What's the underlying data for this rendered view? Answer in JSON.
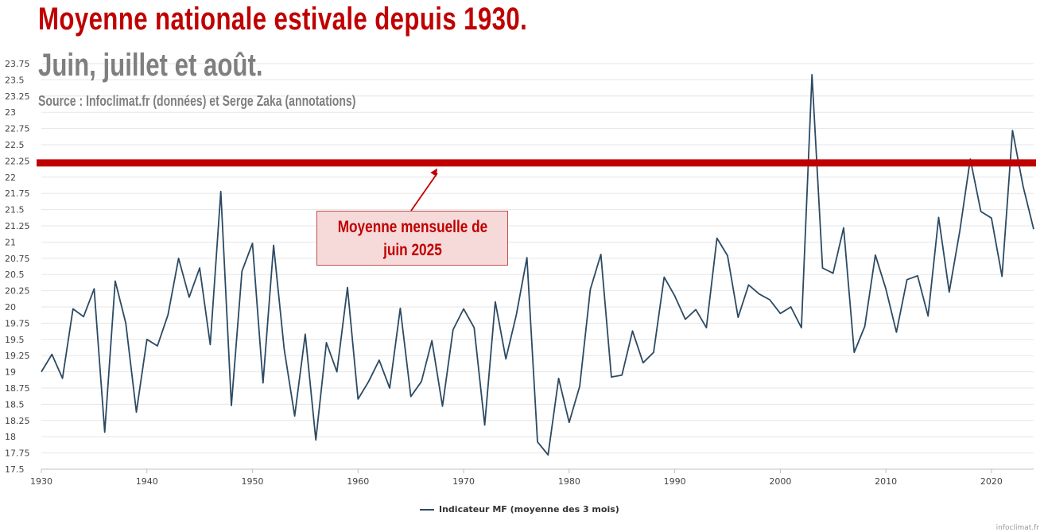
{
  "chart_data": {
    "type": "line",
    "title": "Moyenne nationale estivale depuis 1930.",
    "subtitle": "Juin, juillet et août.",
    "source": "Source : Infoclimat.fr (données) et Serge Zaka (annotations)",
    "xlabel": "",
    "ylabel": "",
    "xlim": [
      1930,
      2024
    ],
    "ylim": [
      17.5,
      23.75
    ],
    "x_ticks": [
      1930,
      1940,
      1950,
      1960,
      1970,
      1980,
      1990,
      2000,
      2010,
      2020
    ],
    "y_ticks": [
      17.5,
      17.75,
      18,
      18.25,
      18.5,
      18.75,
      19,
      19.25,
      19.5,
      19.75,
      20,
      20.25,
      20.5,
      20.75,
      21,
      21.25,
      21.5,
      21.75,
      22,
      22.25,
      22.5,
      22.75,
      23,
      23.25,
      23.5,
      23.75
    ],
    "grid": true,
    "legend_position": "bottom-center",
    "series": [
      {
        "name": "Indicateur MF (moyenne des 3 mois)",
        "color": "#2c4a63",
        "x": [
          1930,
          1931,
          1932,
          1933,
          1934,
          1935,
          1936,
          1937,
          1938,
          1939,
          1940,
          1941,
          1942,
          1943,
          1944,
          1945,
          1946,
          1947,
          1948,
          1949,
          1950,
          1951,
          1952,
          1953,
          1954,
          1955,
          1956,
          1957,
          1958,
          1959,
          1960,
          1961,
          1962,
          1963,
          1964,
          1965,
          1966,
          1967,
          1968,
          1969,
          1970,
          1971,
          1972,
          1973,
          1974,
          1975,
          1976,
          1977,
          1978,
          1979,
          1980,
          1981,
          1982,
          1983,
          1984,
          1985,
          1986,
          1987,
          1988,
          1989,
          1990,
          1991,
          1992,
          1993,
          1994,
          1995,
          1996,
          1997,
          1998,
          1999,
          2000,
          2001,
          2002,
          2003,
          2004,
          2005,
          2006,
          2007,
          2008,
          2009,
          2010,
          2011,
          2012,
          2013,
          2014,
          2015,
          2016,
          2017,
          2018,
          2019,
          2020,
          2021,
          2022,
          2023,
          2024
        ],
        "values": [
          19.0,
          19.27,
          18.9,
          19.97,
          19.85,
          20.28,
          18.07,
          20.4,
          19.75,
          18.38,
          19.5,
          19.4,
          19.88,
          20.75,
          20.15,
          20.6,
          19.42,
          21.78,
          18.48,
          20.55,
          20.98,
          18.83,
          20.95,
          19.35,
          18.32,
          19.58,
          17.95,
          19.45,
          19.0,
          20.3,
          18.58,
          18.85,
          19.18,
          18.75,
          19.98,
          18.62,
          18.85,
          19.48,
          18.47,
          19.65,
          19.97,
          19.68,
          18.18,
          20.08,
          19.2,
          19.88,
          20.76,
          17.92,
          17.72,
          18.9,
          18.22,
          18.78,
          20.27,
          20.81,
          18.92,
          18.95,
          19.63,
          19.14,
          19.3,
          20.46,
          20.17,
          19.81,
          19.96,
          19.68,
          21.06,
          20.79,
          19.84,
          20.34,
          20.2,
          20.11,
          19.9,
          20.0,
          19.68,
          23.58,
          20.6,
          20.52,
          21.22,
          19.3,
          19.7,
          20.8,
          20.28,
          19.61,
          20.42,
          20.48,
          19.86,
          21.38,
          20.23,
          21.17,
          22.28,
          21.47,
          21.37,
          20.47,
          22.72,
          21.86,
          21.2
        ]
      }
    ],
    "reference_line": {
      "value": 22.22,
      "color": "#c00000",
      "annotation": "Moyenne mensuelle de\njuin 2025",
      "arrow_target_x": 1967.5
    },
    "annotation_colors": {
      "title": "#c00000",
      "subtitle": "#7f7f7f",
      "callout_fill": "#f6dada",
      "callout_border": "#c0504d"
    },
    "credit": "infoclimat.fr"
  }
}
